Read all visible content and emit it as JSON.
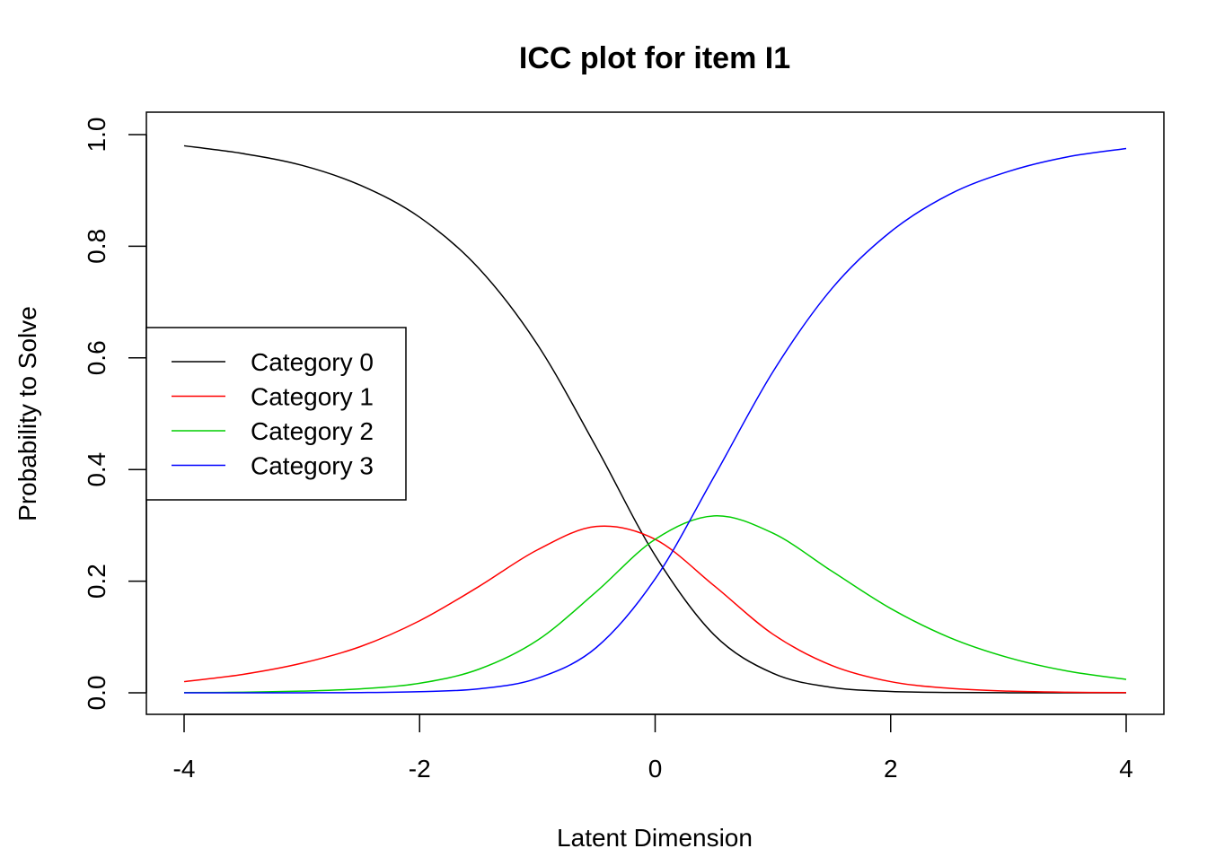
{
  "chart_data": {
    "type": "line",
    "title": "ICC plot for item I1",
    "xlabel": "Latent Dimension",
    "ylabel": "Probability to Solve",
    "xlim": [
      -4,
      4
    ],
    "ylim": [
      0,
      1
    ],
    "xticks": [
      "-4",
      "-2",
      "0",
      "2",
      "4"
    ],
    "yticks": [
      "0.0",
      "0.2",
      "0.4",
      "0.6",
      "0.8",
      "1.0"
    ],
    "grid": false,
    "legend_position": "left",
    "x": [
      -4,
      -3.5,
      -3,
      -2.5,
      -2,
      -1.5,
      -1,
      -0.5,
      0,
      0.5,
      1,
      1.5,
      2,
      2.5,
      3,
      3.5,
      4
    ],
    "series": [
      {
        "name": "Category 0",
        "color": "#000000",
        "values": [
          0.98,
          0.966,
          0.945,
          0.909,
          0.852,
          0.761,
          0.624,
          0.44,
          0.246,
          0.104,
          0.035,
          0.0097,
          0.0025,
          0.0006,
          0.0001,
          0.0,
          0.0
        ]
      },
      {
        "name": "Category 1",
        "color": "#FF0000",
        "values": [
          0.02,
          0.033,
          0.053,
          0.083,
          0.129,
          0.19,
          0.256,
          0.298,
          0.275,
          0.192,
          0.105,
          0.049,
          0.02,
          0.008,
          0.003,
          0.001,
          0.0004
        ]
      },
      {
        "name": "Category 2",
        "color": "#00CD00",
        "values": [
          0.0004,
          0.001,
          0.003,
          0.007,
          0.017,
          0.042,
          0.094,
          0.181,
          0.275,
          0.317,
          0.286,
          0.218,
          0.151,
          0.099,
          0.063,
          0.039,
          0.024
        ]
      },
      {
        "name": "Category 3",
        "color": "#0000FF",
        "values": [
          0.0,
          0.0,
          0.0001,
          0.0004,
          0.002,
          0.007,
          0.026,
          0.081,
          0.204,
          0.387,
          0.575,
          0.724,
          0.826,
          0.893,
          0.934,
          0.96,
          0.975
        ]
      }
    ]
  }
}
